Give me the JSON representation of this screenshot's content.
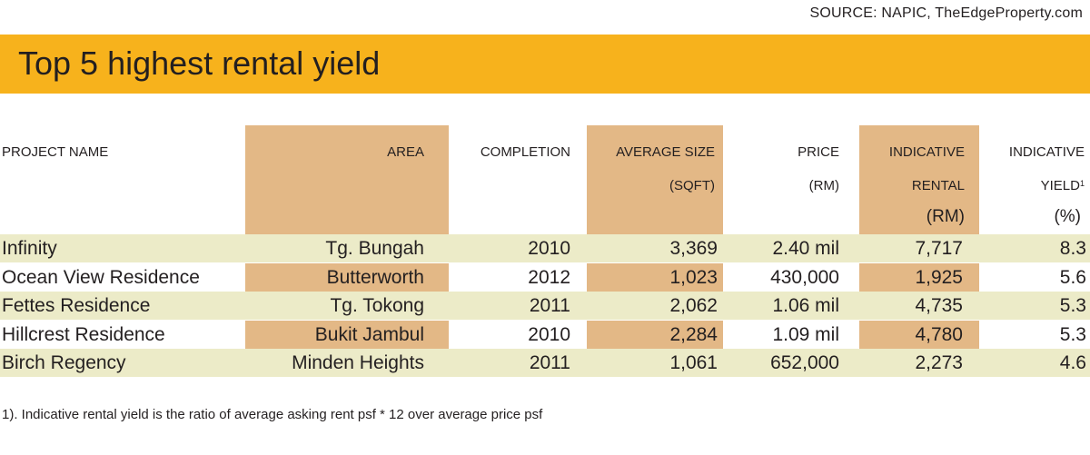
{
  "source": "SOURCE: NAPIC, TheEdgeProperty.com",
  "title": "Top 5 highest rental yield",
  "colors": {
    "banner": "#f7b21c",
    "band": "#e3b886",
    "row_shade": "#ecebc8"
  },
  "headers": {
    "project_name": "PROJECT NAME",
    "area": "AREA",
    "completion": "COMPLETION",
    "size_1": "AVERAGE SIZE",
    "size_2": "(SQFT)",
    "price_1": "PRICE",
    "price_2": "(RM)",
    "rental_1": "INDICATIVE",
    "rental_2": "RENTAL",
    "rental_3": "(RM)",
    "yield_1": "INDICATIVE",
    "yield_2": "YIELD",
    "yield_sup": "1",
    "yield_3": "(%)"
  },
  "chart_data": {
    "type": "table",
    "title": "Top 5 highest rental yield",
    "columns": [
      "PROJECT NAME",
      "AREA",
      "COMPLETION",
      "AVERAGE SIZE (SQFT)",
      "PRICE (RM)",
      "INDICATIVE RENTAL (RM)",
      "INDICATIVE YIELD1 (%)"
    ],
    "rows": [
      [
        "Infinity",
        "Tg. Bungah",
        "2010",
        "3,369",
        "2.40 mil",
        "7,717",
        "8.3"
      ],
      [
        "Ocean View Residence",
        "Butterworth",
        "2012",
        "1,023",
        "430,000",
        "1,925",
        "5.6"
      ],
      [
        "Fettes Residence",
        "Tg. Tokong",
        "2011",
        "2,062",
        "1.06 mil",
        "4,735",
        "5.3"
      ],
      [
        "Hillcrest Residence",
        "Bukit Jambul",
        "2010",
        "2,284",
        "1.09 mil",
        "4,780",
        "5.3"
      ],
      [
        "Birch Regency",
        "Minden Heights",
        "2011",
        "1,061",
        "652,000",
        "2,273",
        "4.6"
      ]
    ]
  },
  "footnote": "1). Indicative rental yield is the ratio of average asking rent psf * 12 over average price psf"
}
